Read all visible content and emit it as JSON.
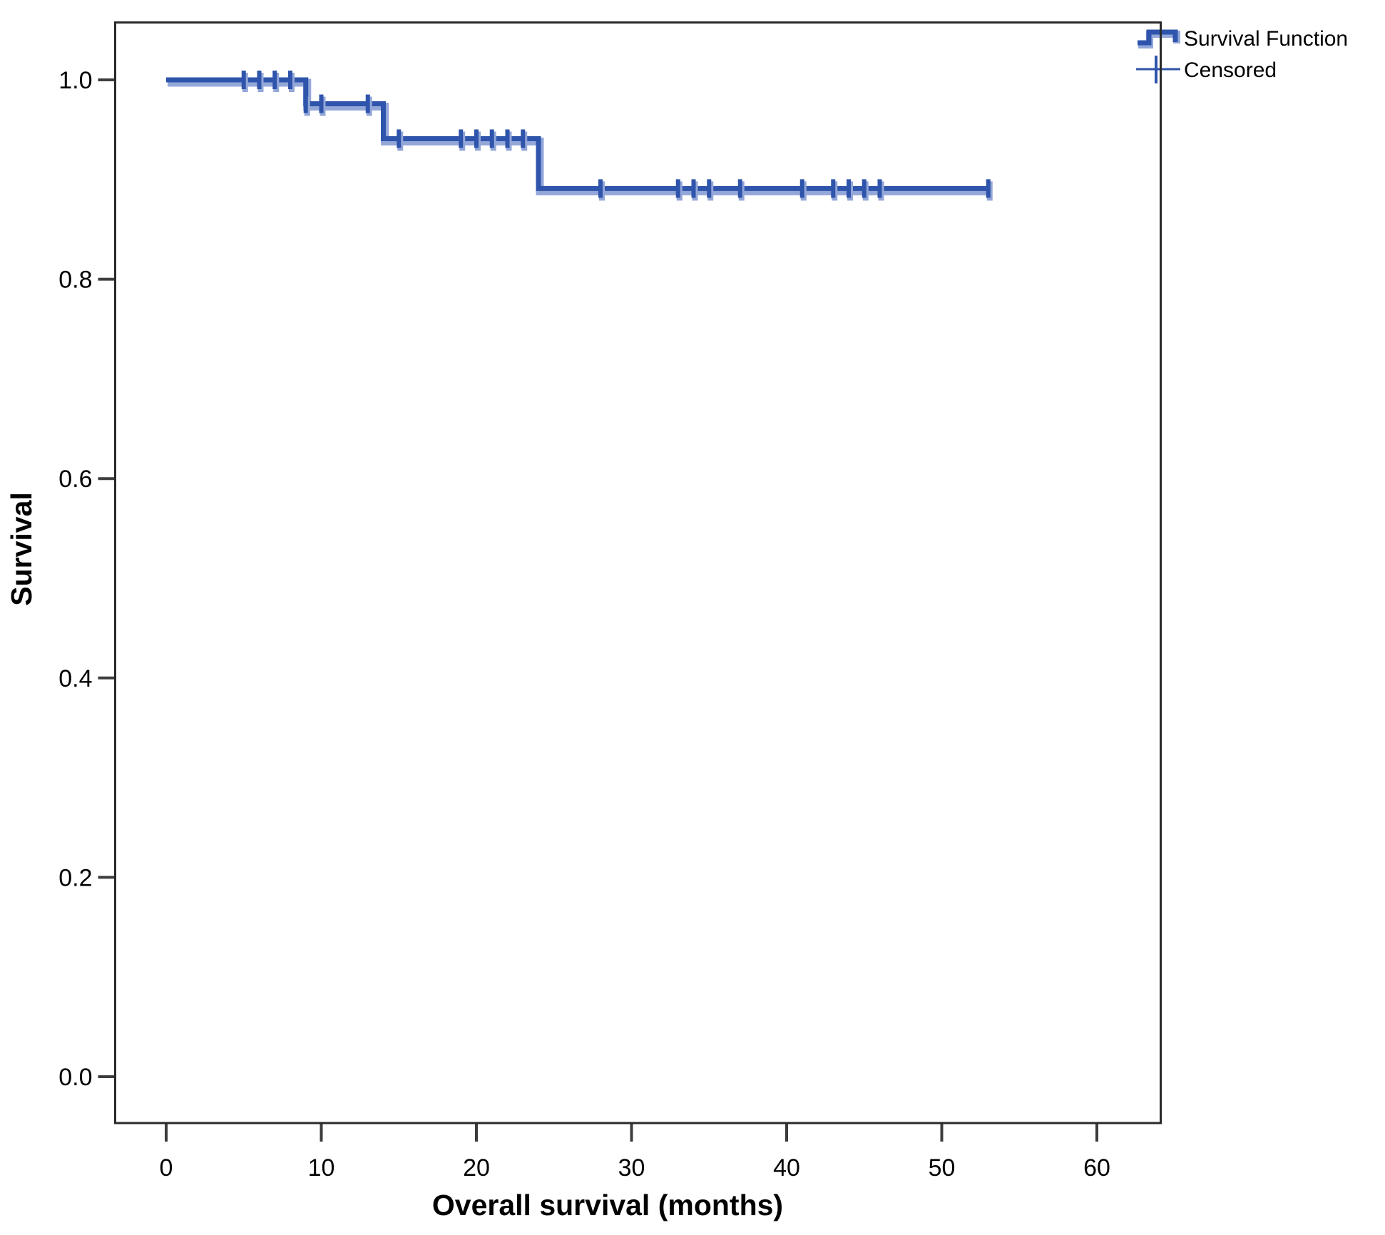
{
  "chart_data": {
    "type": "line",
    "subtype": "kaplan-meier-step",
    "title": "",
    "xlabel": "Overall survival (months)",
    "ylabel": "Survival",
    "x_tick_values": [
      0,
      10,
      20,
      30,
      40,
      50,
      60
    ],
    "x_tick_labels": [
      "0",
      "10",
      "20",
      "30",
      "40",
      "50",
      "60"
    ],
    "y_tick_values": [
      0.0,
      0.2,
      0.4,
      0.6,
      0.8,
      1.0
    ],
    "y_tick_labels": [
      "0.0",
      "0.2",
      "0.4",
      "0.6",
      "0.8",
      "1.0"
    ],
    "xlim": [
      -3.4,
      64.2
    ],
    "ylim": [
      -0.046,
      1.059
    ],
    "grid": false,
    "legend_position": "top-right",
    "legend": [
      {
        "label": "Survival Function",
        "marker": "step-line"
      },
      {
        "label": "Censored",
        "marker": "plus"
      }
    ],
    "series": [
      {
        "name": "Survival Function",
        "steps": [
          {
            "t_start": 0,
            "t_end": 9,
            "survival": 1.0
          },
          {
            "t_start": 9,
            "t_end": 14,
            "survival": 0.976
          },
          {
            "t_start": 14,
            "t_end": 24,
            "survival": 0.941
          },
          {
            "t_start": 24,
            "t_end": 53,
            "survival": 0.891
          }
        ],
        "event_months": [
          9,
          14,
          24
        ],
        "censored_points": [
          {
            "t": 5,
            "s": 1.0
          },
          {
            "t": 6,
            "s": 1.0
          },
          {
            "t": 7,
            "s": 1.0
          },
          {
            "t": 8,
            "s": 1.0
          },
          {
            "t": 9,
            "s": 0.976
          },
          {
            "t": 10,
            "s": 0.976
          },
          {
            "t": 13,
            "s": 0.976
          },
          {
            "t": 15,
            "s": 0.941
          },
          {
            "t": 19,
            "s": 0.941
          },
          {
            "t": 20,
            "s": 0.941
          },
          {
            "t": 21,
            "s": 0.941
          },
          {
            "t": 22,
            "s": 0.941
          },
          {
            "t": 23,
            "s": 0.941
          },
          {
            "t": 28,
            "s": 0.891
          },
          {
            "t": 33,
            "s": 0.891
          },
          {
            "t": 34,
            "s": 0.891
          },
          {
            "t": 35,
            "s": 0.891
          },
          {
            "t": 37,
            "s": 0.891
          },
          {
            "t": 41,
            "s": 0.891
          },
          {
            "t": 43,
            "s": 0.891
          },
          {
            "t": 44,
            "s": 0.891
          },
          {
            "t": 45,
            "s": 0.891
          },
          {
            "t": 46,
            "s": 0.891
          },
          {
            "t": 53,
            "s": 0.891
          }
        ]
      }
    ],
    "colors": {
      "line": "#2F54AB",
      "line_halo": "#93A7D8",
      "axis_frame": "#2A2A2A",
      "tick": "#3C3C3C",
      "text": "#000000",
      "background": "#FFFFFF"
    }
  }
}
